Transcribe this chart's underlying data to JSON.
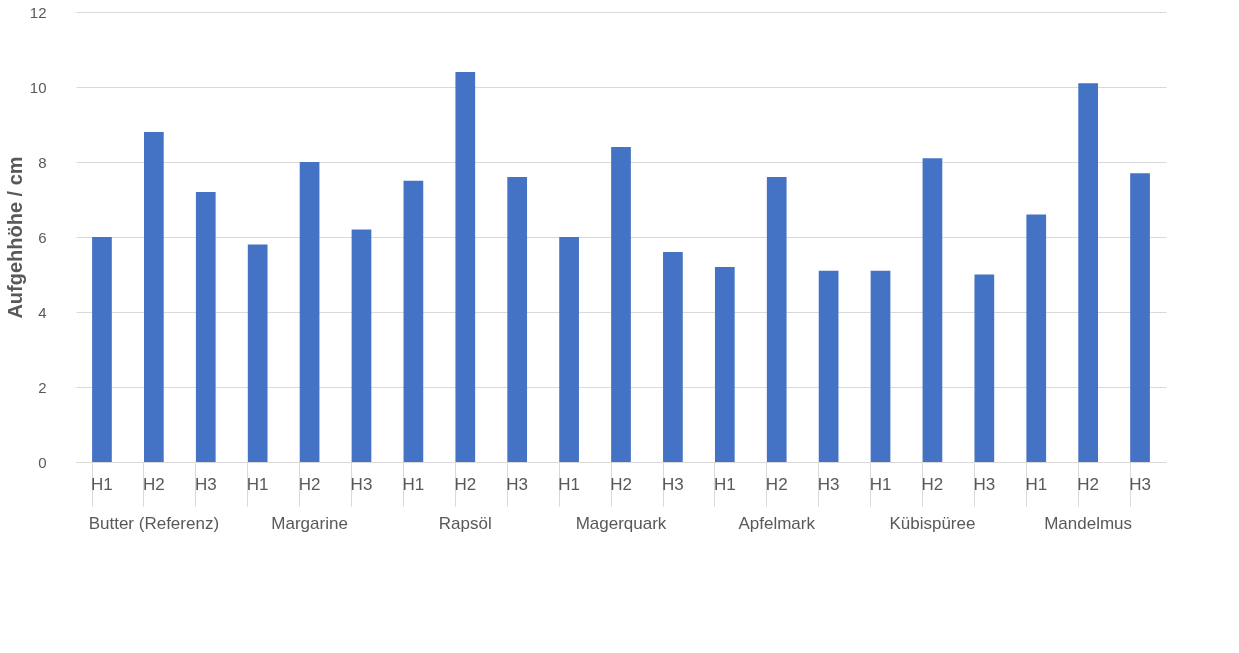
{
  "chart_data": {
    "type": "bar",
    "ylabel": "Aufgehhöhe / cm",
    "categories": [
      "H1",
      "H2",
      "H3",
      "H1",
      "H2",
      "H3",
      "H1",
      "H2",
      "H3",
      "H1",
      "H2",
      "H3",
      "H1",
      "H2",
      "H3",
      "H1",
      "H2",
      "H3",
      "H1",
      "H2",
      "H3"
    ],
    "series": [
      {
        "color": "#4472c4",
        "values": [
          6.0,
          8.8,
          7.2,
          5.8,
          8.0,
          6.2,
          7.5,
          10.4,
          7.6,
          6.0,
          8.4,
          5.6,
          5.2,
          7.6,
          5.1,
          5.1,
          8.1,
          5.0,
          6.6,
          10.1,
          7.7
        ]
      }
    ],
    "annotations": [
      "Butter (Referenz)",
      "Margarine",
      "Rapsöl",
      "Magerquark",
      "Apfelmark",
      "Kübispüree",
      "Mandelmus"
    ],
    "ylim": [
      0,
      12
    ],
    "yticks": [
      0,
      2,
      4,
      6,
      8,
      10,
      12
    ],
    "grid": "y",
    "legend": false
  }
}
